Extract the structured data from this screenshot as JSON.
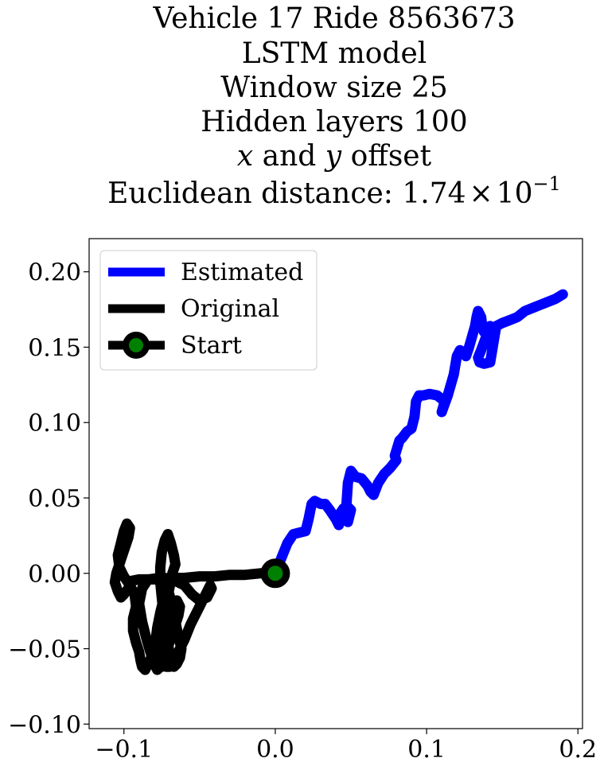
{
  "chart_data": {
    "type": "line",
    "title_lines": [
      "Vehicle 17 Ride 8563673",
      "LSTM model",
      "Window size 25",
      "Hidden layers 100",
      "x and y offset",
      "Euclidean distance: 1.74 × 10⁻¹"
    ],
    "title_math": {
      "offset_x": "x",
      "offset_and": " and ",
      "offset_y": "y",
      "offset_rest": " offset",
      "dist_prefix": "Euclidean distance: ",
      "dist_mantissa": "1.74",
      "dist_times": "×",
      "dist_base": "10",
      "dist_exp": "−1"
    },
    "xlabel": "",
    "ylabel": "",
    "xlim": [
      -0.123,
      0.203
    ],
    "ylim": [
      -0.103,
      0.222
    ],
    "x_ticks": [
      -0.1,
      0.0,
      0.1,
      0.2
    ],
    "x_tick_labels": [
      "−0.1",
      "0.0",
      "0.1",
      "0.2"
    ],
    "y_ticks": [
      -0.1,
      -0.05,
      0.0,
      0.05,
      0.1,
      0.15,
      0.2
    ],
    "y_tick_labels": [
      "−0.10",
      "−0.05",
      "0.00",
      "0.05",
      "0.10",
      "0.15",
      "0.20"
    ],
    "grid": false,
    "legend_position": "top-left",
    "series": [
      {
        "name": "Estimated",
        "color": "#0000ff",
        "x": [
          0.0,
          0.004,
          0.008,
          0.012,
          0.016,
          0.02,
          0.022,
          0.024,
          0.026,
          0.03,
          0.033,
          0.036,
          0.04,
          0.042,
          0.043,
          0.045,
          0.047,
          0.048,
          0.05,
          0.047,
          0.048,
          0.05,
          0.053,
          0.057,
          0.061,
          0.063,
          0.065,
          0.068,
          0.072,
          0.076,
          0.08,
          0.079,
          0.082,
          0.084,
          0.087,
          0.09,
          0.092,
          0.093,
          0.095,
          0.098,
          0.102,
          0.107,
          0.112,
          0.11,
          0.114,
          0.118,
          0.12,
          0.122,
          0.124,
          0.126,
          0.128,
          0.13,
          0.132,
          0.133,
          0.134,
          0.136,
          0.137,
          0.138,
          0.14,
          0.142,
          0.136,
          0.134,
          0.135,
          0.138,
          0.142,
          0.146,
          0.15,
          0.155,
          0.16,
          0.165,
          0.17,
          0.175,
          0.18,
          0.185,
          0.19
        ],
        "y": [
          0.0,
          0.01,
          0.02,
          0.026,
          0.027,
          0.028,
          0.036,
          0.046,
          0.048,
          0.046,
          0.046,
          0.042,
          0.036,
          0.032,
          0.04,
          0.043,
          0.04,
          0.034,
          0.042,
          0.045,
          0.06,
          0.068,
          0.064,
          0.063,
          0.058,
          0.054,
          0.052,
          0.06,
          0.066,
          0.07,
          0.075,
          0.078,
          0.088,
          0.09,
          0.094,
          0.096,
          0.104,
          0.114,
          0.118,
          0.118,
          0.119,
          0.118,
          0.114,
          0.107,
          0.118,
          0.132,
          0.144,
          0.148,
          0.147,
          0.144,
          0.15,
          0.157,
          0.164,
          0.17,
          0.174,
          0.17,
          0.162,
          0.16,
          0.162,
          0.164,
          0.148,
          0.143,
          0.14,
          0.139,
          0.14,
          0.164,
          0.166,
          0.168,
          0.17,
          0.174,
          0.176,
          0.178,
          0.18,
          0.182,
          0.185
        ]
      },
      {
        "name": "Original",
        "color": "#000000",
        "x": [
          0.0,
          -0.01,
          -0.02,
          -0.03,
          -0.04,
          -0.05,
          -0.06,
          -0.07,
          -0.08,
          -0.09,
          -0.095,
          -0.097,
          -0.1,
          -0.102,
          -0.104,
          -0.106,
          -0.105,
          -0.103,
          -0.101,
          -0.099,
          -0.097,
          -0.096,
          -0.098,
          -0.1,
          -0.102,
          -0.104,
          -0.103,
          -0.1,
          -0.096,
          -0.093,
          -0.092,
          -0.094,
          -0.094,
          -0.092,
          -0.09,
          -0.089,
          -0.088,
          -0.086,
          -0.084,
          -0.082,
          -0.08,
          -0.079,
          -0.078,
          -0.076,
          -0.074,
          -0.072,
          -0.07,
          -0.068,
          -0.066,
          -0.064,
          -0.062,
          -0.063,
          -0.065,
          -0.067,
          -0.069,
          -0.07,
          -0.071,
          -0.072,
          -0.073,
          -0.074,
          -0.075,
          -0.076,
          -0.076,
          -0.075,
          -0.073,
          -0.071,
          -0.069,
          -0.067,
          -0.066,
          -0.068,
          -0.07,
          -0.072,
          -0.074,
          -0.076,
          -0.078,
          -0.079,
          -0.078,
          -0.076,
          -0.074,
          -0.072,
          -0.07,
          -0.067,
          -0.064,
          -0.06,
          -0.056,
          -0.052,
          -0.048,
          -0.045,
          -0.043,
          -0.042,
          -0.045,
          -0.05,
          -0.055,
          -0.06,
          -0.068,
          -0.076,
          -0.084,
          -0.088,
          -0.09,
          -0.088,
          -0.085,
          -0.082,
          -0.08,
          -0.078,
          -0.076,
          -0.074,
          -0.072,
          -0.07,
          -0.068,
          -0.066,
          -0.064,
          -0.063,
          -0.065,
          -0.068,
          -0.071,
          -0.074,
          -0.077,
          -0.079,
          -0.08,
          -0.079,
          -0.077,
          -0.075,
          -0.073,
          -0.071
        ],
        "y": [
          0.0,
          0.0,
          -0.001,
          -0.001,
          -0.002,
          -0.002,
          -0.003,
          -0.003,
          -0.004,
          -0.004,
          -0.005,
          -0.01,
          -0.014,
          -0.016,
          -0.012,
          -0.006,
          0.0,
          0.006,
          0.012,
          0.018,
          0.024,
          0.03,
          0.033,
          0.028,
          0.02,
          0.012,
          0.004,
          -0.002,
          -0.008,
          -0.014,
          -0.022,
          -0.03,
          -0.038,
          -0.046,
          -0.052,
          -0.058,
          -0.062,
          -0.064,
          -0.06,
          -0.056,
          -0.052,
          -0.044,
          -0.036,
          -0.026,
          -0.018,
          -0.01,
          -0.014,
          -0.022,
          -0.032,
          -0.042,
          -0.05,
          -0.056,
          -0.06,
          -0.062,
          -0.058,
          -0.052,
          -0.046,
          -0.04,
          -0.034,
          -0.026,
          -0.016,
          -0.006,
          0.004,
          0.014,
          0.022,
          0.026,
          0.02,
          0.012,
          0.006,
          0.0,
          -0.01,
          -0.02,
          -0.03,
          -0.038,
          -0.044,
          -0.048,
          -0.054,
          -0.058,
          -0.06,
          -0.062,
          -0.062,
          -0.058,
          -0.052,
          -0.044,
          -0.034,
          -0.026,
          -0.018,
          -0.012,
          -0.008,
          -0.01,
          -0.016,
          -0.018,
          -0.014,
          -0.008,
          -0.004,
          -0.003,
          -0.004,
          -0.01,
          -0.02,
          -0.032,
          -0.044,
          -0.054,
          -0.06,
          -0.064,
          -0.062,
          -0.058,
          -0.052,
          -0.046,
          -0.04,
          -0.034,
          -0.028,
          -0.022,
          -0.018,
          -0.024,
          -0.032,
          -0.04,
          -0.048,
          -0.054,
          -0.058,
          -0.06,
          -0.062,
          -0.062,
          -0.06,
          -0.058
        ]
      },
      {
        "name": "Start",
        "color": "#000000",
        "marker_face": "#008000",
        "x": [
          0.0
        ],
        "y": [
          0.0
        ]
      }
    ]
  }
}
